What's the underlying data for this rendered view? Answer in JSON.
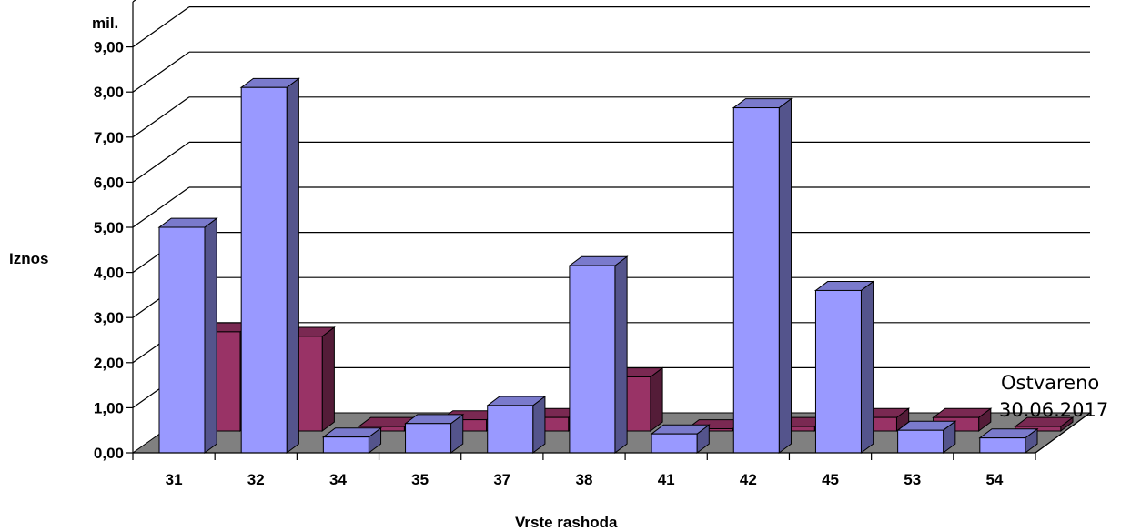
{
  "chart_data": {
    "type": "bar",
    "unit_label": "mil.",
    "ylabel": "Iznos",
    "xlabel": "Vrste rashoda",
    "categories": [
      "31",
      "32",
      "34",
      "35",
      "37",
      "38",
      "41",
      "42",
      "45",
      "53",
      "54"
    ],
    "yticks": [
      "0,00",
      "1,00",
      "2,00",
      "3,00",
      "4,00",
      "5,00",
      "6,00",
      "7,00",
      "8,00",
      "9,00"
    ],
    "ylim": [
      0,
      9
    ],
    "grid": true,
    "legend_position": "right",
    "series": [
      {
        "values": [
          5.0,
          8.1,
          0.35,
          0.65,
          1.05,
          4.15,
          0.42,
          7.65,
          3.6,
          0.5,
          0.33
        ],
        "color": "#9999ff"
      },
      {
        "name": "Ostvareno 30.06.2017",
        "legend_lines": [
          "Ostvareno",
          "30.06.2017"
        ],
        "values": [
          2.2,
          2.1,
          0.1,
          0.25,
          0.3,
          1.2,
          0.05,
          0.1,
          0.3,
          0.3,
          0.1
        ],
        "color": "#993366"
      }
    ],
    "floor_color": "#808080"
  }
}
